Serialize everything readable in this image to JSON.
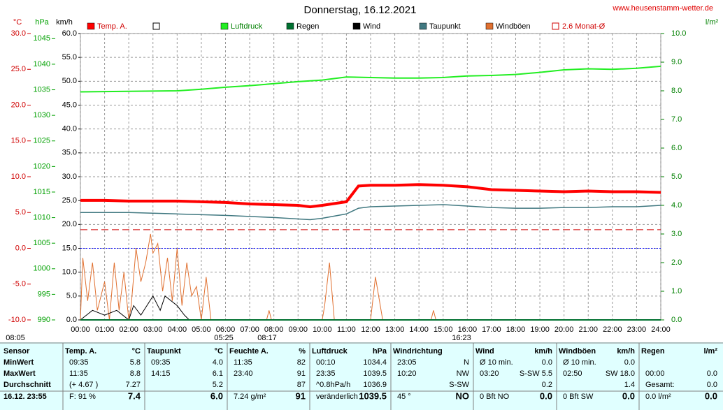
{
  "chart_data": {
    "type": "line",
    "title": "Donnerstag, 16.12.2021",
    "source": "www.heusenstamm-wetter.de",
    "xlim": [
      0,
      24
    ],
    "xticks": [
      {
        "value": 0,
        "label": "00:00"
      },
      {
        "value": 1,
        "label": "01:00"
      },
      {
        "value": 2,
        "label": "02:00"
      },
      {
        "value": 3,
        "label": "03:00"
      },
      {
        "value": 4,
        "label": "04:00"
      },
      {
        "value": 5,
        "label": "05:00"
      },
      {
        "value": 6,
        "label": "06:00"
      },
      {
        "value": 7,
        "label": "07:00"
      },
      {
        "value": 8,
        "label": "08:00"
      },
      {
        "value": 9,
        "label": "09:00"
      },
      {
        "value": 10,
        "label": "10:00"
      },
      {
        "value": 11,
        "label": "11:00"
      },
      {
        "value": 12,
        "label": "12:00"
      },
      {
        "value": 13,
        "label": "13:00"
      },
      {
        "value": 14,
        "label": "14:00"
      },
      {
        "value": 15,
        "label": "15:00"
      },
      {
        "value": 16,
        "label": "16:00"
      },
      {
        "value": 17,
        "label": "17:00"
      },
      {
        "value": 18,
        "label": "18:00"
      },
      {
        "value": 19,
        "label": "19:00"
      },
      {
        "value": 20,
        "label": "20:00"
      },
      {
        "value": 21,
        "label": "21:00"
      },
      {
        "value": 22,
        "label": "22:00"
      },
      {
        "value": 23,
        "label": "23:00"
      },
      {
        "value": 24,
        "label": "24:00"
      }
    ],
    "axes": {
      "temp": {
        "label": "°C",
        "color": "#d00000",
        "lim": [
          -10,
          30
        ],
        "ticks": [
          {
            "value": -10,
            "label": "-10.0"
          },
          {
            "value": -5,
            "label": "-5.0"
          },
          {
            "value": 0,
            "label": "0.0"
          },
          {
            "value": 5,
            "label": "5.0"
          },
          {
            "value": 10,
            "label": "10.0"
          },
          {
            "value": 15,
            "label": "15.0"
          },
          {
            "value": 20,
            "label": "20.0"
          },
          {
            "value": 25,
            "label": "25.0"
          },
          {
            "value": 30,
            "label": "30.0"
          }
        ]
      },
      "hpa": {
        "label": "hPa",
        "color": "#00a000",
        "lim": [
          990,
          1046
        ],
        "ticks": [
          990,
          995,
          1000,
          1005,
          1010,
          1015,
          1020,
          1025,
          1030,
          1035,
          1040,
          1045
        ]
      },
      "kmh": {
        "label": "km/h",
        "color": "#000000",
        "lim": [
          0,
          60
        ],
        "ticks": [
          {
            "value": 0,
            "label": "0.0"
          },
          {
            "value": 5,
            "label": "5.0"
          },
          {
            "value": 10,
            "label": "10.0"
          },
          {
            "value": 15,
            "label": "15.0"
          },
          {
            "value": 20,
            "label": "20.0"
          },
          {
            "value": 25,
            "label": "25.0"
          },
          {
            "value": 30,
            "label": "30.0"
          },
          {
            "value": 35,
            "label": "35.0"
          },
          {
            "value": 40,
            "label": "40.0"
          },
          {
            "value": 45,
            "label": "45.0"
          },
          {
            "value": 50,
            "label": "50.0"
          },
          {
            "value": 55,
            "label": "55.0"
          },
          {
            "value": 60,
            "label": "60.0"
          }
        ]
      },
      "rain": {
        "label": "l/m²",
        "color": "#008000",
        "lim": [
          0,
          10
        ],
        "ticks": [
          {
            "value": 0,
            "label": "0.0"
          },
          {
            "value": 1,
            "label": "1.0"
          },
          {
            "value": 2,
            "label": "2.0"
          },
          {
            "value": 3,
            "label": "3.0"
          },
          {
            "value": 4,
            "label": "4.0"
          },
          {
            "value": 5,
            "label": "5.0"
          },
          {
            "value": 6,
            "label": "6.0"
          },
          {
            "value": 7,
            "label": "7.0"
          },
          {
            "value": 8,
            "label": "8.0"
          },
          {
            "value": 9,
            "label": "9.0"
          },
          {
            "value": 10,
            "label": "10.0"
          }
        ]
      }
    },
    "series": [
      {
        "name": "Temp. A.",
        "color": "#ff0000",
        "axis": "temp",
        "width": 4,
        "x": [
          0,
          1,
          2,
          3,
          4,
          5,
          6,
          7,
          8,
          9,
          9.5,
          10,
          11,
          11.5,
          12,
          13,
          14,
          15,
          16,
          17,
          18,
          19,
          20,
          21,
          22,
          23,
          24
        ],
        "values": [
          6.7,
          6.7,
          6.6,
          6.6,
          6.6,
          6.5,
          6.4,
          6.2,
          6.1,
          6.0,
          5.8,
          6.0,
          6.5,
          8.7,
          8.8,
          8.8,
          8.9,
          8.8,
          8.6,
          8.2,
          8.1,
          8.0,
          7.9,
          8.0,
          7.9,
          7.9,
          7.8
        ]
      },
      {
        "name": "Luftdruck",
        "color": "#22ee22",
        "axis": "hpa",
        "width": 2,
        "x": [
          0,
          2,
          4,
          5,
          6,
          7,
          8,
          9,
          10,
          11,
          12,
          13,
          14,
          15,
          16,
          17,
          18,
          19,
          20,
          21,
          22,
          23,
          24
        ],
        "values": [
          1034.6,
          1034.7,
          1034.8,
          1035.1,
          1035.5,
          1035.8,
          1036.2,
          1036.6,
          1036.9,
          1037.5,
          1037.4,
          1037.3,
          1037.3,
          1037.4,
          1037.7,
          1037.8,
          1038.0,
          1038.4,
          1038.9,
          1039.1,
          1039.0,
          1039.2,
          1039.6
        ]
      },
      {
        "name": "Regen",
        "color": "#007030",
        "axis": "rain",
        "width": 2,
        "x": [
          0,
          24
        ],
        "values": [
          0,
          0
        ]
      },
      {
        "name": "Wind",
        "color": "#000000",
        "axis": "kmh",
        "width": 1,
        "x": [
          0,
          0.5,
          1,
          1.5,
          2,
          2.2,
          2.5,
          3,
          3.3,
          3.5,
          4,
          4.3,
          4.5,
          5,
          24
        ],
        "values": [
          0,
          2,
          1,
          2,
          0,
          3,
          1,
          5,
          2,
          5,
          3,
          1,
          0,
          0,
          0
        ]
      },
      {
        "name": "Taupunkt",
        "color": "#407880",
        "axis": "temp",
        "width": 1.5,
        "x": [
          0,
          2,
          4,
          6,
          8,
          9,
          9.5,
          10,
          11,
          11.5,
          12,
          13,
          14,
          15,
          16,
          17,
          18,
          19,
          20,
          21,
          22,
          23,
          24
        ],
        "values": [
          5.0,
          5.0,
          4.8,
          4.6,
          4.3,
          4.1,
          4.0,
          4.2,
          4.8,
          5.6,
          5.8,
          5.9,
          6.0,
          6.1,
          5.9,
          5.7,
          5.6,
          5.6,
          5.7,
          5.7,
          5.8,
          5.8,
          6.0
        ]
      },
      {
        "name": "Windböen",
        "color": "#e07030",
        "axis": "kmh",
        "width": 1,
        "x": [
          0,
          0.1,
          0.3,
          0.5,
          0.7,
          1,
          1.2,
          1.4,
          1.6,
          1.8,
          2,
          2.1,
          2.3,
          2.5,
          2.7,
          2.9,
          3,
          3.2,
          3.4,
          3.6,
          3.8,
          4,
          4.2,
          4.4,
          4.6,
          4.8,
          5,
          5.2,
          5.4,
          7.7,
          7.8,
          7.9,
          10,
          10.1,
          10.3,
          10.5,
          12,
          12.2,
          12.5,
          12.7,
          14.5,
          14.6,
          14.7,
          24
        ],
        "values": [
          0,
          13,
          4,
          12,
          2,
          8,
          0,
          12,
          2,
          10,
          0,
          3,
          15,
          8,
          12,
          18,
          14,
          16,
          6,
          13,
          4,
          15,
          3,
          12,
          5,
          7,
          0,
          9,
          0,
          0,
          2,
          0,
          0,
          3,
          12,
          0,
          0,
          9,
          0,
          0,
          0,
          2,
          0,
          0
        ]
      }
    ],
    "reference_lines": [
      {
        "name": "2.6 Monat-Ø",
        "value": 2.6,
        "axis": "temp",
        "color": "#d00000"
      }
    ],
    "annotations": [
      "08:05",
      "05:25",
      "08:17",
      "16:23"
    ]
  },
  "table": {
    "columns": [
      {
        "header": [
          "Sensor"
        ],
        "rows": [
          [
            "MinWert"
          ],
          [
            "MaxWert"
          ],
          [
            "Durchschnitt"
          ],
          [
            "16.12. 23:55"
          ]
        ]
      },
      {
        "header": [
          "Temp. A.",
          "°C"
        ],
        "rows": [
          [
            "09:35",
            "5.8"
          ],
          [
            "11:35",
            "8.8"
          ],
          [
            "(+ 4.67 )",
            "7.27"
          ],
          [
            "F: 91 %",
            "7.4"
          ]
        ]
      },
      {
        "header": [
          "Taupunkt",
          "°C"
        ],
        "rows": [
          [
            "09:35",
            "4.0"
          ],
          [
            "14:15",
            "6.1"
          ],
          [
            "5.2"
          ],
          [
            "6.0"
          ]
        ]
      },
      {
        "header": [
          "Feuchte A.",
          "%"
        ],
        "rows": [
          [
            "11:35",
            "82"
          ],
          [
            "23:40",
            "91"
          ],
          [
            "87"
          ],
          [
            "7.24 g/m²",
            "91"
          ]
        ]
      },
      {
        "header": [
          "Luftdruck",
          "hPa"
        ],
        "rows": [
          [
            "00:10",
            "1034.4"
          ],
          [
            "23:35",
            "1039.5"
          ],
          [
            "^0.8hPa/h",
            "1036.9"
          ],
          [
            "veränderlich",
            "1039.5"
          ]
        ]
      },
      {
        "header": [
          "Windrichtung"
        ],
        "rows": [
          [
            "23:05",
            "N"
          ],
          [
            "10:20",
            "NW"
          ],
          [
            "S-SW"
          ],
          [
            "45 °",
            "NO"
          ]
        ]
      },
      {
        "header": [
          "Wind",
          "km/h"
        ],
        "rows": [
          [
            "Ø 10 min.",
            "0.0"
          ],
          [
            "03:20",
            "S-SW 5.5"
          ],
          [
            "0.2"
          ],
          [
            "0 Bft NO",
            "0.0"
          ]
        ]
      },
      {
        "header": [
          "Windböen",
          "km/h"
        ],
        "rows": [
          [
            "Ø 10 min.",
            "0.0"
          ],
          [
            "02:50",
            "SW 18.0"
          ],
          [
            "1.4"
          ],
          [
            "0 Bft SW",
            "0.0"
          ]
        ]
      },
      {
        "header": [
          "Regen",
          "l/m²"
        ],
        "rows": [
          [],
          [
            "00:00",
            "0.0"
          ],
          [
            "Gesamt:",
            "0.0"
          ],
          [
            "0.0 l/m²",
            "0.0"
          ]
        ]
      }
    ]
  }
}
